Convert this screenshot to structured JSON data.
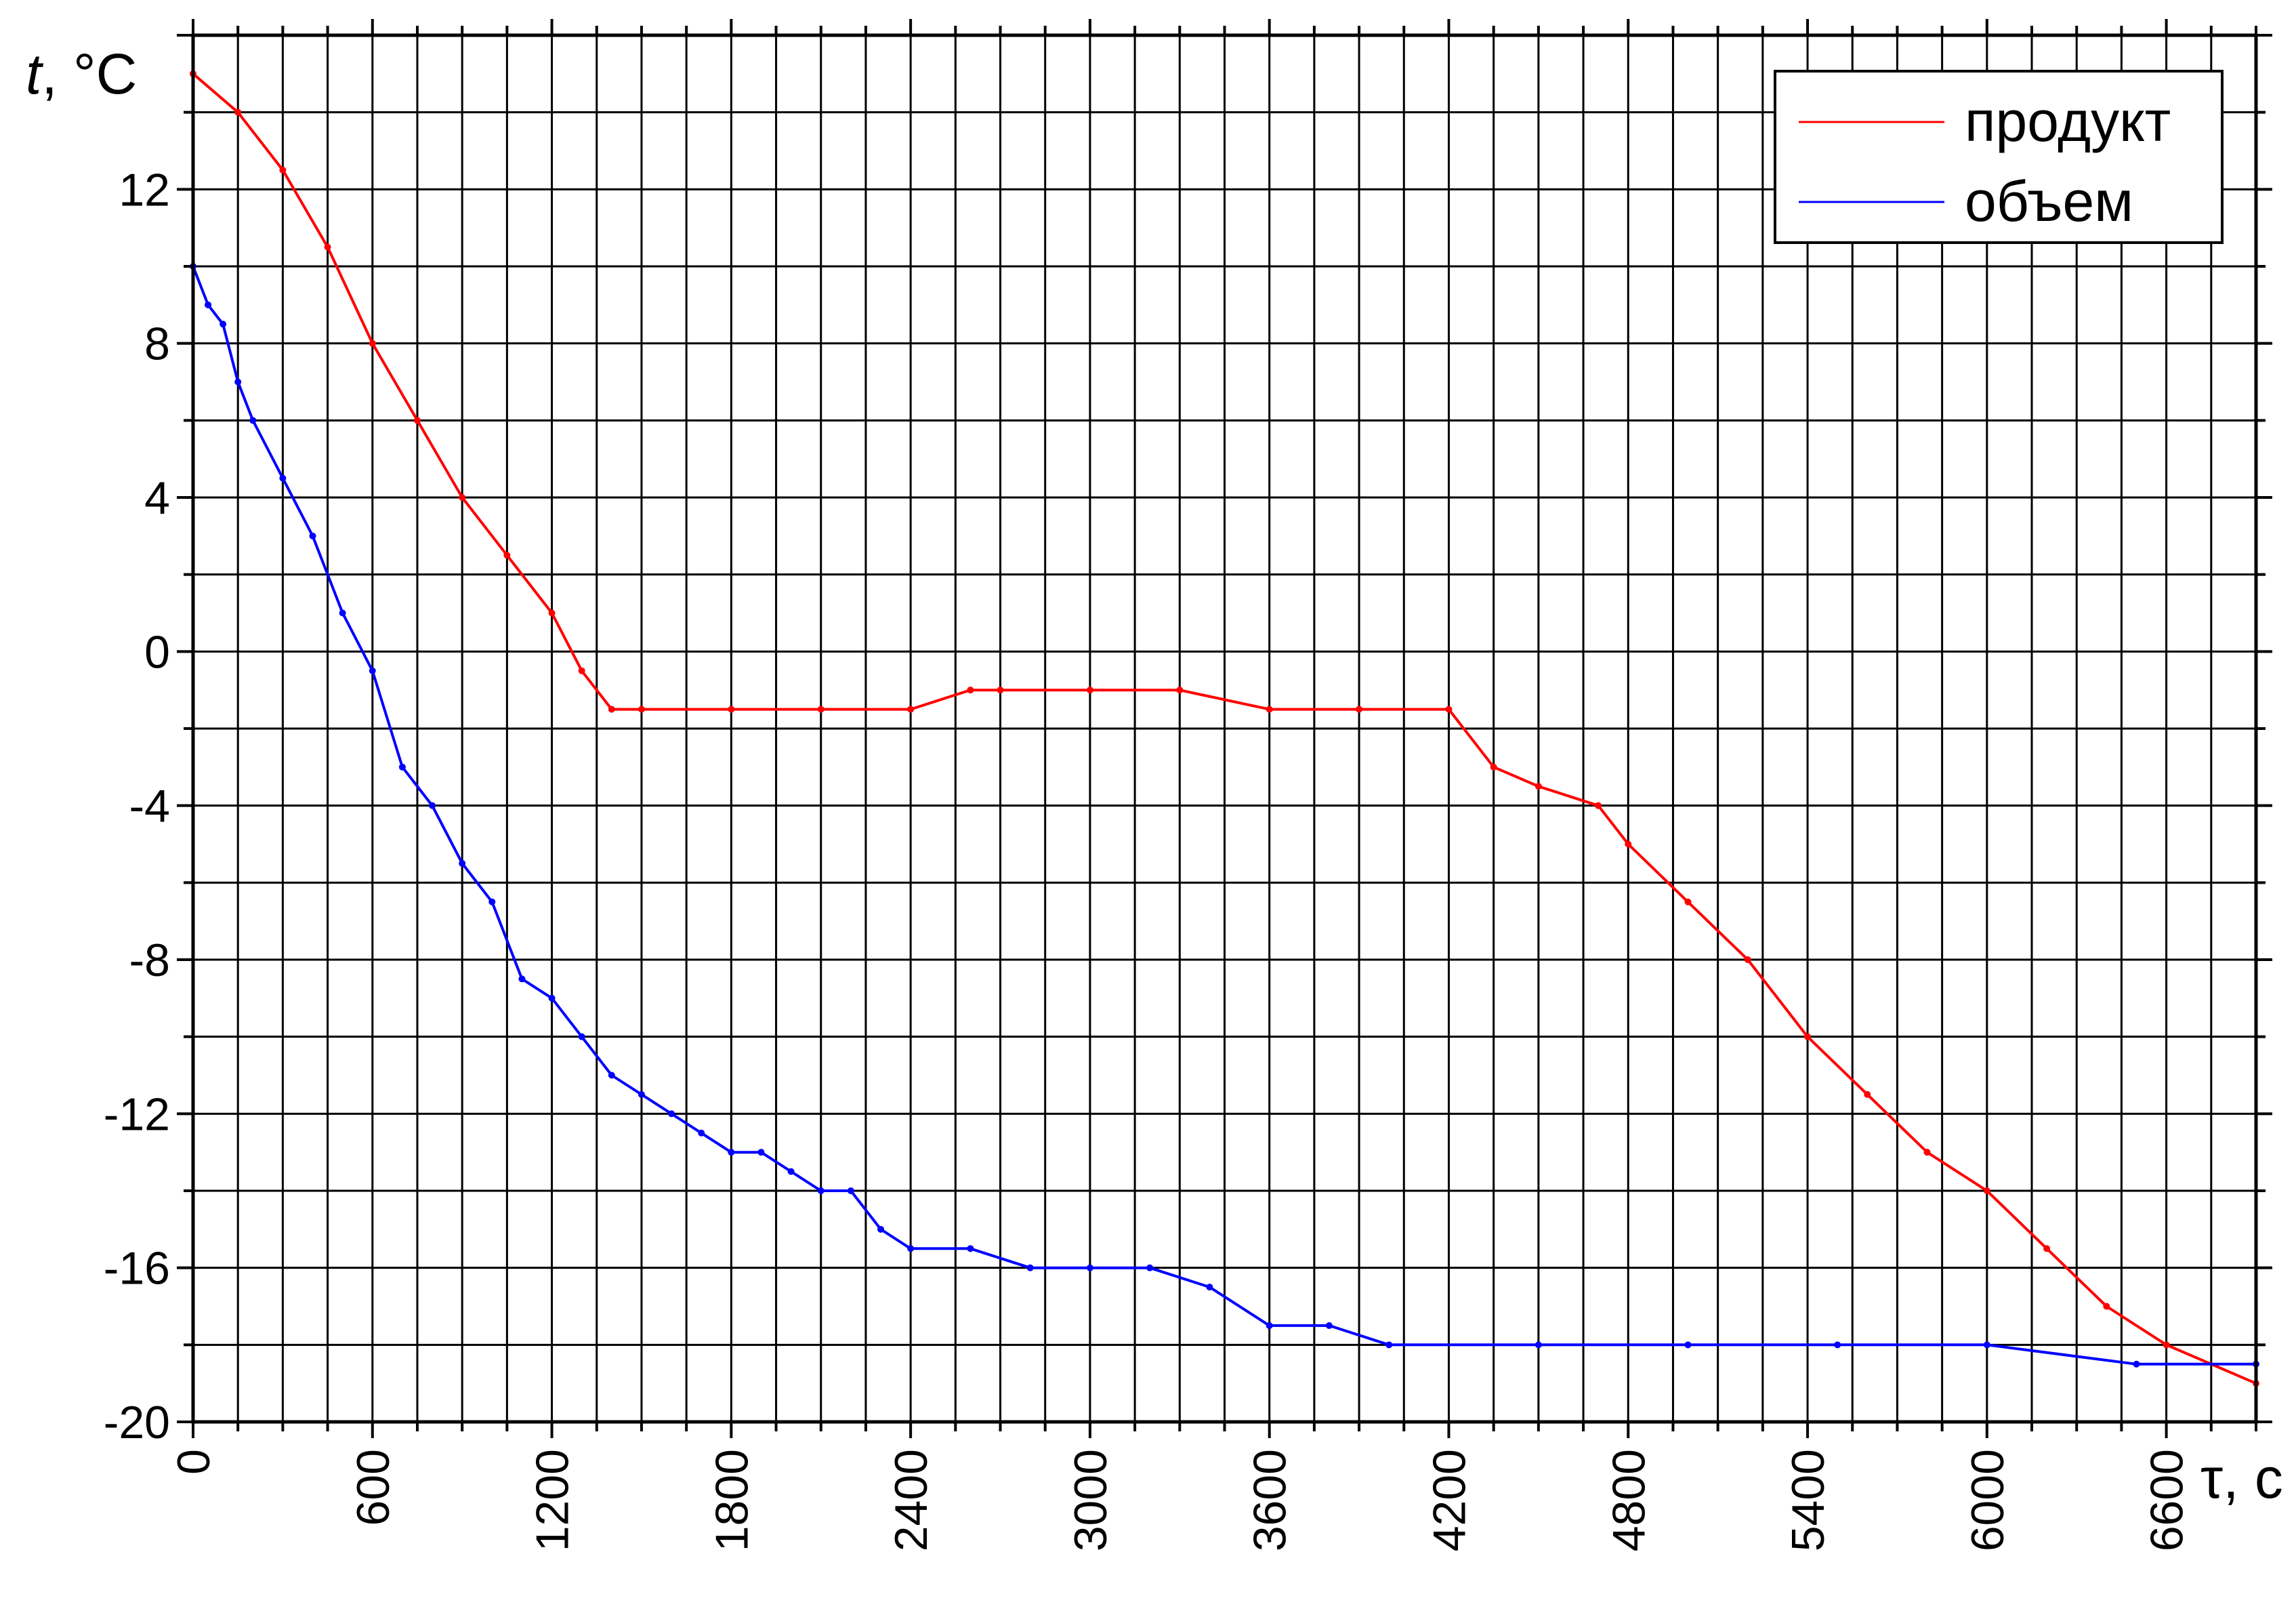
{
  "chart_data": {
    "type": "line",
    "ylabel_var": "t",
    "ylabel_unit": ", °C",
    "xlabel_var": "τ",
    "xlabel_unit": ", с",
    "xlim": [
      0,
      6900
    ],
    "ylim": [
      -20,
      16
    ],
    "x_ticks": [
      0,
      600,
      1200,
      1800,
      2400,
      3000,
      3600,
      4200,
      4800,
      5400,
      6000,
      6600
    ],
    "x_tick_labels": [
      "0",
      "600",
      "1200",
      "1800",
      "2400",
      "3000",
      "3600",
      "4200",
      "4800",
      "5400",
      "6000",
      "6600"
    ],
    "y_ticks": [
      -20,
      -16,
      -12,
      -8,
      -4,
      0,
      4,
      8,
      12
    ],
    "y_tick_labels": [
      "-20",
      "-16",
      "-12",
      "-8",
      "-4",
      "0",
      "4",
      "8",
      "12"
    ],
    "grid": true,
    "legend_position": "top-right",
    "series": [
      {
        "name": "продукт",
        "color": "#ff0000",
        "x": [
          0,
          150,
          300,
          450,
          600,
          750,
          900,
          1050,
          1200,
          1300,
          1400,
          1500,
          1800,
          2100,
          2400,
          2600,
          2700,
          3000,
          3300,
          3600,
          3900,
          4200,
          4350,
          4500,
          4700,
          4800,
          5000,
          5200,
          5400,
          5600,
          5800,
          6000,
          6200,
          6400,
          6600,
          6900
        ],
        "y": [
          15,
          14,
          12.5,
          10.5,
          8,
          6,
          4,
          2.5,
          1,
          -0.5,
          -1.5,
          -1.5,
          -1.5,
          -1.5,
          -1.5,
          -1,
          -1,
          -1,
          -1,
          -1.5,
          -1.5,
          -1.5,
          -3,
          -3.5,
          -4,
          -5,
          -6.5,
          -8,
          -10,
          -11.5,
          -13,
          -14,
          -15.5,
          -17,
          -18,
          -19
        ]
      },
      {
        "name": "объем",
        "color": "#0000ff",
        "x": [
          0,
          50,
          100,
          150,
          200,
          300,
          400,
          500,
          600,
          700,
          800,
          900,
          1000,
          1100,
          1200,
          1300,
          1400,
          1500,
          1600,
          1700,
          1800,
          1900,
          2000,
          2100,
          2200,
          2300,
          2400,
          2600,
          2800,
          3000,
          3200,
          3400,
          3600,
          3800,
          4000,
          4500,
          5000,
          5500,
          6000,
          6500,
          6900
        ],
        "y": [
          10,
          9,
          8.5,
          7,
          6,
          4.5,
          3,
          1,
          -0.5,
          -3,
          -4,
          -5.5,
          -6.5,
          -8.5,
          -9,
          -10,
          -11,
          -11.5,
          -12,
          -12.5,
          -13,
          -13,
          -13.5,
          -14,
          -14,
          -15,
          -15.5,
          -15.5,
          -16,
          -16,
          -16,
          -16.5,
          -17.5,
          -17.5,
          -18,
          -18,
          -18,
          -18,
          -18,
          -18.5,
          -18.5
        ]
      }
    ]
  }
}
